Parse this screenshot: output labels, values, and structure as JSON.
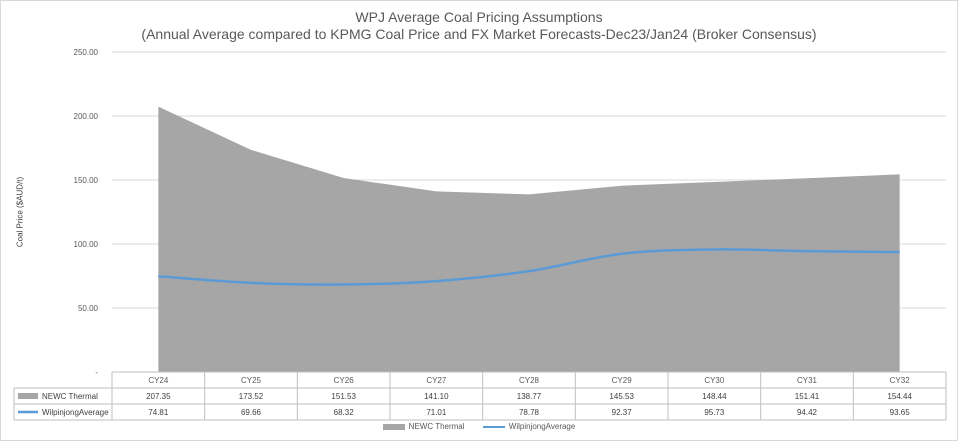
{
  "chart_data": {
    "type": "area",
    "title": "WPJ Average Coal Pricing Assumptions",
    "subtitle": "(Annual Average compared to KPMG Coal Price and FX Market Forecasts-Dec23/Jan24 (Broker Consensus)",
    "ylabel": "Coal Price ($AUD/t)",
    "xlabel": "",
    "ylim": [
      0,
      250
    ],
    "yticks": [
      "250.00",
      "200.00",
      "150.00",
      "100.00",
      "50.00",
      "-"
    ],
    "grid": true,
    "categories": [
      "CY24",
      "CY25",
      "CY26",
      "CY27",
      "CY28",
      "CY29",
      "CY30",
      "CY31",
      "CY32"
    ],
    "series": [
      {
        "name": "NEWC Thermal",
        "style": "area",
        "color": "#a6a6a6",
        "values": [
          207.35,
          173.52,
          151.53,
          141.1,
          138.77,
          145.53,
          148.44,
          151.41,
          154.44
        ],
        "labels": [
          "207.35",
          "173.52",
          "151.53",
          "141.10",
          "138.77",
          "145.53",
          "148.44",
          "151.41",
          "154.44"
        ]
      },
      {
        "name": "WilpinjongAverage",
        "style": "line",
        "color": "#5b9bd5",
        "values": [
          74.81,
          69.66,
          68.32,
          71.01,
          78.78,
          92.37,
          95.73,
          94.42,
          93.65
        ],
        "labels": [
          "74.81",
          "69.66",
          "68.32",
          "71.01",
          "78.78",
          "92.37",
          "95.73",
          "94.42",
          "93.65"
        ]
      }
    ],
    "legend": [
      "NEWC Thermal",
      "WilpinjongAverage"
    ],
    "legend_position": "bottom"
  }
}
